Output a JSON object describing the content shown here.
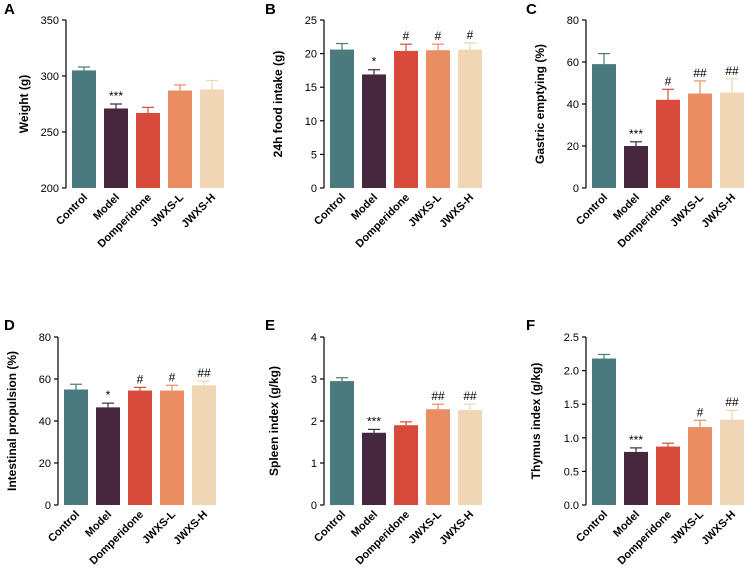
{
  "colors": {
    "Control": "#4a7a7e",
    "Model": "#46283e",
    "Domperidone": "#d84b3a",
    "JWXS-L": "#e98d62",
    "JWXS-H": "#f0d6b5"
  },
  "chart_data": [
    {
      "panel": "A",
      "type": "bar",
      "title": "",
      "xlabel": "",
      "ylabel": "Weight (g)",
      "categories": [
        "Control",
        "Model",
        "Domperidone",
        "JWXS-L",
        "JWXS-H"
      ],
      "values": [
        305,
        271,
        267,
        287,
        288
      ],
      "errors": [
        3,
        4,
        5,
        5,
        8
      ],
      "significance": [
        "",
        "***",
        "",
        "",
        ""
      ],
      "ylim": [
        200,
        350
      ],
      "yticks": [
        200,
        250,
        300,
        350
      ]
    },
    {
      "panel": "B",
      "type": "bar",
      "title": "",
      "xlabel": "",
      "ylabel": "24h food intake (g)",
      "categories": [
        "Control",
        "Model",
        "Domperidone",
        "JWXS-L",
        "JWXS-H"
      ],
      "values": [
        20.6,
        16.9,
        20.4,
        20.5,
        20.6
      ],
      "errors": [
        0.9,
        0.7,
        1.0,
        0.9,
        1.0
      ],
      "significance": [
        "",
        "*",
        "#",
        "#",
        "#"
      ],
      "ylim": [
        0,
        25
      ],
      "yticks": [
        0,
        5,
        10,
        15,
        20,
        25
      ]
    },
    {
      "panel": "C",
      "type": "bar",
      "title": "",
      "xlabel": "",
      "ylabel": "Gastric emptying (%)",
      "categories": [
        "Control",
        "Model",
        "Domperidone",
        "JWXS-L",
        "JWXS-H"
      ],
      "values": [
        59,
        20,
        42,
        45,
        45.5
      ],
      "errors": [
        5,
        2,
        5,
        6,
        6.5
      ],
      "significance": [
        "",
        "***",
        "#",
        "##",
        "##"
      ],
      "ylim": [
        0,
        80
      ],
      "yticks": [
        0,
        20,
        40,
        60,
        80
      ]
    },
    {
      "panel": "D",
      "type": "bar",
      "title": "",
      "xlabel": "",
      "ylabel": "Intestinal propulsion (%)",
      "categories": [
        "Control",
        "Model",
        "Domperidone",
        "JWXS-L",
        "JWXS-H"
      ],
      "values": [
        55,
        46.5,
        54.5,
        54.5,
        57
      ],
      "errors": [
        2.5,
        2,
        1.5,
        2.5,
        2
      ],
      "significance": [
        "",
        "*",
        "#",
        "#",
        "##"
      ],
      "ylim": [
        0,
        80
      ],
      "yticks": [
        0,
        20,
        40,
        60,
        80
      ]
    },
    {
      "panel": "E",
      "type": "bar",
      "title": "",
      "xlabel": "",
      "ylabel": "Spleen index (g/kg)",
      "categories": [
        "Control",
        "Model",
        "Domperidone",
        "JWXS-L",
        "JWXS-H"
      ],
      "values": [
        2.95,
        1.72,
        1.9,
        2.28,
        2.26
      ],
      "errors": [
        0.08,
        0.08,
        0.08,
        0.12,
        0.14
      ],
      "significance": [
        "",
        "***",
        "",
        "##",
        "##"
      ],
      "ylim": [
        0,
        4
      ],
      "yticks": [
        0,
        1,
        2,
        3,
        4
      ]
    },
    {
      "panel": "F",
      "type": "bar",
      "title": "",
      "xlabel": "",
      "ylabel": "Thymus index (g/kg)",
      "categories": [
        "Control",
        "Model",
        "Domperidone",
        "JWXS-L",
        "JWXS-H"
      ],
      "values": [
        2.18,
        0.79,
        0.87,
        1.16,
        1.27
      ],
      "errors": [
        0.06,
        0.06,
        0.05,
        0.1,
        0.14
      ],
      "significance": [
        "",
        "***",
        "",
        "#",
        "##"
      ],
      "ylim": [
        0,
        2.5
      ],
      "yticks": [
        0.0,
        0.5,
        1.0,
        1.5,
        2.0,
        2.5
      ]
    }
  ]
}
